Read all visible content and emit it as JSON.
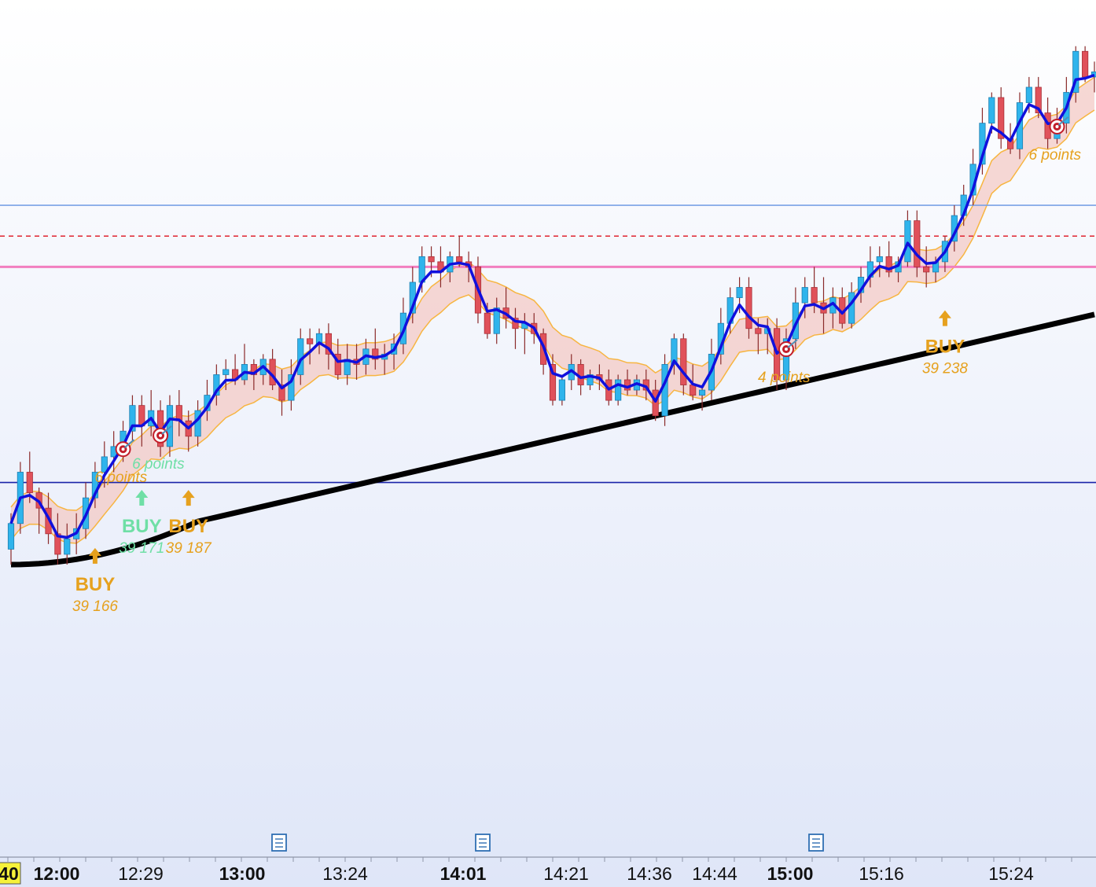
{
  "chart_data": {
    "type": "candlestick",
    "title": "",
    "xlabel": "",
    "ylabel": "",
    "ylim": [
      39095,
      39262
    ],
    "grid": false,
    "colors": {
      "up": "#2fb4ec",
      "down": "#e0515a",
      "fast_ma": "#1010dd",
      "slow_ma": "#000000",
      "band_fill": "#f3c7c2",
      "band_edge": "#f7b541",
      "buy_gold": "#e6a11e",
      "buy_green": "#6fdfa6",
      "hline_light": "#7aa2e6",
      "hline_dashed": "#e0232f",
      "hline_pink": "#f27fbf",
      "hline_navy": "#1a23a8"
    },
    "x_tick_labels": [
      {
        "label": "40",
        "bold": true,
        "highlight": true
      },
      {
        "label": "12:00",
        "bold": true
      },
      {
        "label": "12:29",
        "bold": false
      },
      {
        "label": "13:00",
        "bold": true
      },
      {
        "label": "13:24",
        "bold": false
      },
      {
        "label": "14:01",
        "bold": true
      },
      {
        "label": "14:21",
        "bold": false
      },
      {
        "label": "14:36",
        "bold": false
      },
      {
        "label": "14:44",
        "bold": false
      },
      {
        "label": "15:00",
        "bold": true
      },
      {
        "label": "15:16",
        "bold": false
      },
      {
        "label": "15:24",
        "bold": false
      }
    ],
    "horizontal_lines": [
      {
        "y": 39222,
        "style": "solid",
        "color": "hline_light"
      },
      {
        "y": 39216,
        "style": "dashed",
        "color": "hline_dashed"
      },
      {
        "y": 39210,
        "style": "solid",
        "color": "hline_pink"
      },
      {
        "y": 39168,
        "style": "solid",
        "color": "hline_navy"
      }
    ],
    "candles": [
      [
        39155,
        39162,
        39152,
        39160
      ],
      [
        39160,
        39172,
        39158,
        39170
      ],
      [
        39170,
        39174,
        39164,
        39166
      ],
      [
        39166,
        39167,
        39158,
        39163
      ],
      [
        39163,
        39166,
        39156,
        39158
      ],
      [
        39158,
        39162,
        39152,
        39154
      ],
      [
        39154,
        39160,
        39152,
        39157
      ],
      [
        39157,
        39162,
        39154,
        39159
      ],
      [
        39159,
        39168,
        39157,
        39165
      ],
      [
        39165,
        39172,
        39163,
        39170
      ],
      [
        39170,
        39176,
        39167,
        39173
      ],
      [
        39173,
        39178,
        39170,
        39175
      ],
      [
        39175,
        39180,
        39172,
        39178
      ],
      [
        39178,
        39185,
        39176,
        39183
      ],
      [
        39183,
        39185,
        39175,
        39179
      ],
      [
        39179,
        39186,
        39177,
        39182
      ],
      [
        39182,
        39184,
        39173,
        39175
      ],
      [
        39175,
        39185,
        39173,
        39183
      ],
      [
        39183,
        39186,
        39177,
        39180
      ],
      [
        39180,
        39182,
        39174,
        39177
      ],
      [
        39177,
        39184,
        39175,
        39182
      ],
      [
        39182,
        39188,
        39180,
        39185
      ],
      [
        39185,
        39191,
        39183,
        39189
      ],
      [
        39189,
        39192,
        39186,
        39190
      ],
      [
        39190,
        39193,
        39187,
        39188
      ],
      [
        39188,
        39195,
        39187,
        39191
      ],
      [
        39191,
        39192,
        39186,
        39189
      ],
      [
        39189,
        39193,
        39187,
        39192
      ],
      [
        39192,
        39194,
        39186,
        39187
      ],
      [
        39187,
        39190,
        39181,
        39184
      ],
      [
        39184,
        39192,
        39182,
        39189
      ],
      [
        39189,
        39198,
        39187,
        39196
      ],
      [
        39196,
        39198,
        39191,
        39195
      ],
      [
        39195,
        39198,
        39193,
        39197
      ],
      [
        39197,
        39199,
        39190,
        39193
      ],
      [
        39193,
        39196,
        39188,
        39189
      ],
      [
        39189,
        39195,
        39187,
        39192
      ],
      [
        39192,
        39195,
        39188,
        39191
      ],
      [
        39191,
        39196,
        39189,
        39194
      ],
      [
        39194,
        39198,
        39190,
        39192
      ],
      [
        39192,
        39195,
        39189,
        39193
      ],
      [
        39193,
        39197,
        39190,
        39195
      ],
      [
        39195,
        39204,
        39193,
        39201
      ],
      [
        39201,
        39210,
        39199,
        39207
      ],
      [
        39207,
        39214,
        39205,
        39212
      ],
      [
        39212,
        39214,
        39208,
        39211
      ],
      [
        39211,
        39214,
        39206,
        39209
      ],
      [
        39209,
        39213,
        39207,
        39212
      ],
      [
        39212,
        39216,
        39210,
        39211
      ],
      [
        39211,
        39213,
        39207,
        39210
      ],
      [
        39210,
        39212,
        39199,
        39201
      ],
      [
        39201,
        39203,
        39196,
        39197
      ],
      [
        39197,
        39204,
        39195,
        39202
      ],
      [
        39202,
        39206,
        39198,
        39200
      ],
      [
        39200,
        39202,
        39194,
        39198
      ],
      [
        39198,
        39201,
        39193,
        39199
      ],
      [
        39199,
        39201,
        39195,
        39197
      ],
      [
        39197,
        39198,
        39189,
        39191
      ],
      [
        39191,
        39193,
        39183,
        39184
      ],
      [
        39184,
        39189,
        39183,
        39188
      ],
      [
        39188,
        39193,
        39186,
        39191
      ],
      [
        39191,
        39192,
        39185,
        39187
      ],
      [
        39187,
        39190,
        39186,
        39189
      ],
      [
        39189,
        39191,
        39186,
        39188
      ],
      [
        39188,
        39190,
        39183,
        39184
      ],
      [
        39184,
        39189,
        39183,
        39188
      ],
      [
        39188,
        39190,
        39185,
        39186
      ],
      [
        39186,
        39189,
        39185,
        39188
      ],
      [
        39188,
        39190,
        39184,
        39186
      ],
      [
        39186,
        39188,
        39180,
        39181
      ],
      [
        39181,
        39193,
        39179,
        39191
      ],
      [
        39191,
        39197,
        39189,
        39196
      ],
      [
        39196,
        39197,
        39185,
        39187
      ],
      [
        39187,
        39191,
        39184,
        39185
      ],
      [
        39185,
        39187,
        39182,
        39186
      ],
      [
        39186,
        39196,
        39184,
        39193
      ],
      [
        39193,
        39202,
        39191,
        39199
      ],
      [
        39199,
        39206,
        39197,
        39204
      ],
      [
        39204,
        39208,
        39201,
        39206
      ],
      [
        39206,
        39208,
        39196,
        39198
      ],
      [
        39198,
        39200,
        39193,
        39197
      ],
      [
        39197,
        39200,
        39193,
        39198
      ],
      [
        39198,
        39200,
        39186,
        39188
      ],
      [
        39188,
        39198,
        39186,
        39196
      ],
      [
        39196,
        39206,
        39194,
        39203
      ],
      [
        39203,
        39208,
        39200,
        39206
      ],
      [
        39206,
        39210,
        39201,
        39203
      ],
      [
        39203,
        39208,
        39197,
        39201
      ],
      [
        39201,
        39206,
        39198,
        39204
      ],
      [
        39204,
        39206,
        39198,
        39199
      ],
      [
        39199,
        39207,
        39198,
        39205
      ],
      [
        39205,
        39210,
        39203,
        39208
      ],
      [
        39208,
        39214,
        39206,
        39211
      ],
      [
        39211,
        39214,
        39208,
        39212
      ],
      [
        39212,
        39215,
        39208,
        39209
      ],
      [
        39209,
        39212,
        39207,
        39211
      ],
      [
        39211,
        39221,
        39210,
        39219
      ],
      [
        39219,
        39221,
        39208,
        39210
      ],
      [
        39210,
        39214,
        39206,
        39209
      ],
      [
        39209,
        39212,
        39207,
        39211
      ],
      [
        39211,
        39216,
        39209,
        39215
      ],
      [
        39215,
        39222,
        39213,
        39220
      ],
      [
        39220,
        39226,
        39218,
        39224
      ],
      [
        39224,
        39233,
        39222,
        39230
      ],
      [
        39230,
        39241,
        39228,
        39238
      ],
      [
        39238,
        39244,
        39236,
        39243
      ],
      [
        39243,
        39245,
        39233,
        39235
      ],
      [
        39235,
        39238,
        39232,
        39233
      ],
      [
        39233,
        39244,
        39231,
        39242
      ],
      [
        39242,
        39247,
        39240,
        39245
      ],
      [
        39245,
        39247,
        39239,
        39240
      ],
      [
        39240,
        39243,
        39233,
        39235
      ],
      [
        39235,
        39241,
        39234,
        39238
      ],
      [
        39238,
        39247,
        39236,
        39244
      ],
      [
        39244,
        39253,
        39242,
        39252
      ],
      [
        39252,
        39253,
        39246,
        39247
      ],
      [
        39247,
        39250,
        39244,
        39248
      ]
    ],
    "signals": [
      {
        "bar": 9,
        "label": "BUY",
        "price": "39 166",
        "color": "buy_gold"
      },
      {
        "bar": 14,
        "label": "BUY",
        "price": "39 171",
        "color": "buy_green"
      },
      {
        "bar": 19,
        "label": "BUY",
        "price": "39 187",
        "color": "buy_gold"
      },
      {
        "bar": 100,
        "label": "BUY",
        "price": "39 238",
        "color": "buy_gold"
      }
    ],
    "targets": [
      {
        "bar": 12,
        "text": "6 points",
        "color": "buy_gold"
      },
      {
        "bar": 16,
        "text": "6 points",
        "color": "buy_green"
      },
      {
        "bar": 83,
        "text": "4 points",
        "color": "buy_gold"
      },
      {
        "bar": 112,
        "text": "6 points",
        "color": "buy_gold"
      }
    ]
  },
  "icons": [
    "document-icon",
    "document-icon",
    "document-icon",
    "target-icon"
  ]
}
